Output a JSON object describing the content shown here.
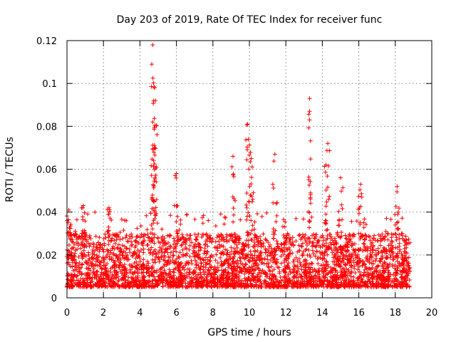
{
  "chart_data": {
    "type": "scatter",
    "title": "Day 203 of 2019, Rate Of TEC Index for receiver func",
    "xlabel": "GPS time / hours",
    "ylabel": "ROTI / TECUs",
    "xlim": [
      0,
      20
    ],
    "ylim": [
      0,
      0.12
    ],
    "xticks": [
      0,
      2,
      4,
      6,
      8,
      10,
      12,
      14,
      16,
      18,
      20
    ],
    "yticks": [
      0,
      0.02,
      0.04,
      0.06,
      0.08,
      0.1,
      0.12
    ],
    "xtick_labels": [
      "0",
      "2",
      "4",
      "6",
      "8",
      "10",
      "12",
      "14",
      "16",
      "18",
      "20"
    ],
    "ytick_labels": [
      "0",
      "0.02",
      "0.04",
      "0.06",
      "0.08",
      "0.1",
      "0.12"
    ],
    "grid": true,
    "marker": "plus",
    "color": "#ff0000",
    "series": [
      {
        "name": "ROTI",
        "x_range": [
          0,
          18.8
        ],
        "typical_range": [
          0.005,
          0.03
        ],
        "spikes": [
          {
            "x": 0.1,
            "y": 0.041
          },
          {
            "x": 0.9,
            "y": 0.043
          },
          {
            "x": 2.3,
            "y": 0.042
          },
          {
            "x": 4.7,
            "y": 0.118
          },
          {
            "x": 4.65,
            "y": 0.109
          },
          {
            "x": 4.8,
            "y": 0.098
          },
          {
            "x": 4.85,
            "y": 0.092
          },
          {
            "x": 4.7,
            "y": 0.082
          },
          {
            "x": 4.8,
            "y": 0.07
          },
          {
            "x": 6.0,
            "y": 0.058
          },
          {
            "x": 9.1,
            "y": 0.066
          },
          {
            "x": 9.9,
            "y": 0.081
          },
          {
            "x": 9.95,
            "y": 0.074
          },
          {
            "x": 10.1,
            "y": 0.065
          },
          {
            "x": 11.4,
            "y": 0.067
          },
          {
            "x": 13.3,
            "y": 0.093
          },
          {
            "x": 13.3,
            "y": 0.087
          },
          {
            "x": 14.3,
            "y": 0.072
          },
          {
            "x": 14.2,
            "y": 0.062
          },
          {
            "x": 15.0,
            "y": 0.056
          },
          {
            "x": 16.1,
            "y": 0.053
          },
          {
            "x": 18.1,
            "y": 0.052
          }
        ]
      }
    ]
  }
}
